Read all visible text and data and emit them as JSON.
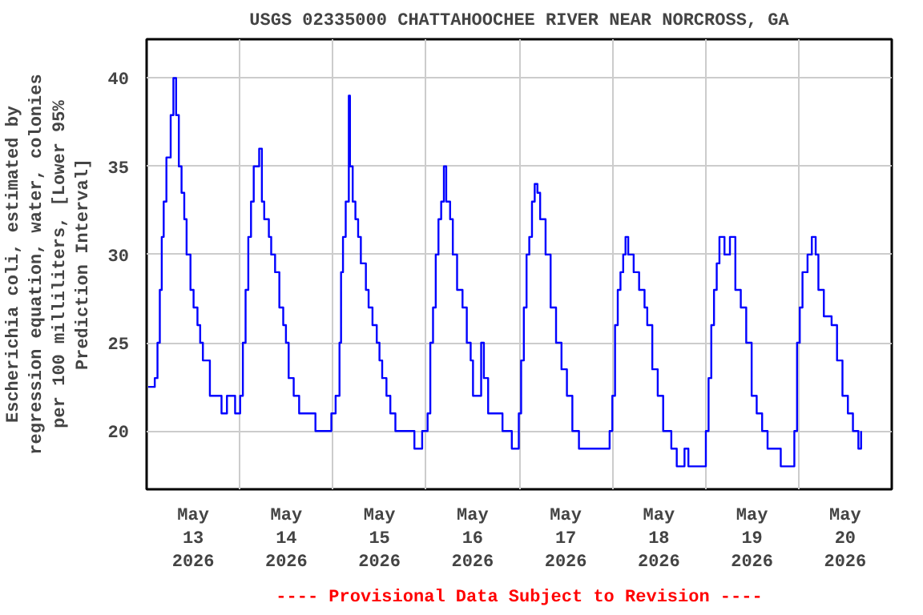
{
  "chart_data": {
    "type": "step",
    "title": "USGS 02335000 CHATTAHOOCHEE RIVER NEAR NORCROSS, GA",
    "ylabel": "Escherichia coli, estimated by\nregression equation, water, colonies\nper 100 milliliters, [Lower 95%\nPrediction Interval]",
    "annotations": [
      "---- Provisional Data Subject to Revision ----"
    ],
    "xlim": [
      "2026-05-13T00:00",
      "2026-05-21T00:00"
    ],
    "xticks": [
      {
        "value": "2026-05-13T12:00",
        "label": "May\n13\n2026"
      },
      {
        "value": "2026-05-14T12:00",
        "label": "May\n14\n2026"
      },
      {
        "value": "2026-05-15T12:00",
        "label": "May\n15\n2026"
      },
      {
        "value": "2026-05-16T12:00",
        "label": "May\n16\n2026"
      },
      {
        "value": "2026-05-17T12:00",
        "label": "May\n17\n2026"
      },
      {
        "value": "2026-05-18T12:00",
        "label": "May\n18\n2026"
      },
      {
        "value": "2026-05-19T12:00",
        "label": "May\n19\n2026"
      },
      {
        "value": "2026-05-20T12:00",
        "label": "May\n20\n2026"
      },
      {
        "value": "2026-05-14T00:00",
        "label": null
      },
      {
        "value": "2026-05-15T00:00",
        "label": null
      },
      {
        "value": "2026-05-16T00:00",
        "label": null
      },
      {
        "value": "2026-05-17T00:00",
        "label": null
      },
      {
        "value": "2026-05-18T00:00",
        "label": null
      },
      {
        "value": "2026-05-19T00:00",
        "label": null
      },
      {
        "value": "2026-05-20T00:00",
        "label": null
      }
    ],
    "ylim": [
      16.7,
      42.2
    ],
    "yticks": [
      20,
      25,
      30,
      35,
      40
    ],
    "grid": true,
    "series": [
      {
        "color": "#0000ff",
        "x": [
          "2026-05-13T00:24",
          "2026-05-13T02:06",
          "2026-05-13T02:48",
          "2026-05-13T03:24",
          "2026-05-13T03:54",
          "2026-05-13T04:24",
          "2026-05-13T05:06",
          "2026-05-13T06:12",
          "2026-05-13T06:54",
          "2026-05-13T07:36",
          "2026-05-13T08:18",
          "2026-05-13T09:00",
          "2026-05-13T09:42",
          "2026-05-13T10:18",
          "2026-05-13T11:18",
          "2026-05-13T12:06",
          "2026-05-13T13:06",
          "2026-05-13T13:48",
          "2026-05-13T14:30",
          "2026-05-13T16:18",
          "2026-05-13T18:36",
          "2026-05-13T19:18",
          "2026-05-13T20:42",
          "2026-05-13T22:48",
          "2026-05-14T00:06",
          "2026-05-14T00:48",
          "2026-05-14T01:30",
          "2026-05-14T02:12",
          "2026-05-14T02:54",
          "2026-05-14T03:36",
          "2026-05-14T05:00",
          "2026-05-14T05:42",
          "2026-05-14T06:18",
          "2026-05-14T07:30",
          "2026-05-14T08:06",
          "2026-05-14T09:06",
          "2026-05-14T10:12",
          "2026-05-14T11:12",
          "2026-05-14T11:54",
          "2026-05-14T12:36",
          "2026-05-14T13:54",
          "2026-05-14T15:18",
          "2026-05-14T18:48",
          "2026-05-14T19:30",
          "2026-05-14T22:12",
          "2026-05-14T23:36",
          "2026-05-15T00:42",
          "2026-05-15T01:42",
          "2026-05-15T02:06",
          "2026-05-15T02:36",
          "2026-05-15T03:18",
          "2026-05-15T04:06",
          "2026-05-15T04:24",
          "2026-05-15T05:06",
          "2026-05-15T05:48",
          "2026-05-15T06:30",
          "2026-05-15T07:12",
          "2026-05-15T08:30",
          "2026-05-15T09:12",
          "2026-05-15T10:12",
          "2026-05-15T11:18",
          "2026-05-15T12:00",
          "2026-05-15T12:42",
          "2026-05-15T13:48",
          "2026-05-15T14:48",
          "2026-05-15T16:06",
          "2026-05-15T20:18",
          "2026-05-15T21:00",
          "2026-05-15T22:24",
          "2026-05-15T23:00",
          "2026-05-16T00:24",
          "2026-05-16T01:06",
          "2026-05-16T01:48",
          "2026-05-16T02:30",
          "2026-05-16T03:12",
          "2026-05-16T03:54",
          "2026-05-16T04:36",
          "2026-05-16T05:12",
          "2026-05-16T06:12",
          "2026-05-16T06:54",
          "2026-05-16T08:00",
          "2026-05-16T09:24",
          "2026-05-16T10:30",
          "2026-05-16T11:30",
          "2026-05-16T12:06",
          "2026-05-16T14:12",
          "2026-05-16T14:54",
          "2026-05-16T16:00",
          "2026-05-16T19:00",
          "2026-05-16T19:42",
          "2026-05-16T22:06",
          "2026-05-16T23:54",
          "2026-05-17T00:30",
          "2026-05-17T01:12",
          "2026-05-17T01:54",
          "2026-05-17T02:36",
          "2026-05-17T03:18",
          "2026-05-17T04:00",
          "2026-05-17T04:42",
          "2026-05-17T05:24",
          "2026-05-17T06:48",
          "2026-05-17T08:06",
          "2026-05-17T09:30",
          "2026-05-17T10:54",
          "2026-05-17T12:18",
          "2026-05-17T13:42",
          "2026-05-17T15:24",
          "2026-05-17T22:36",
          "2026-05-17T23:18",
          "2026-05-18T00:00",
          "2026-05-18T00:42",
          "2026-05-18T01:24",
          "2026-05-18T02:06",
          "2026-05-18T02:48",
          "2026-05-18T03:24",
          "2026-05-18T04:06",
          "2026-05-18T05:30",
          "2026-05-18T06:54",
          "2026-05-18T08:18",
          "2026-05-18T09:00",
          "2026-05-18T10:18",
          "2026-05-18T11:42",
          "2026-05-18T13:06",
          "2026-05-18T15:12",
          "2026-05-18T16:36",
          "2026-05-18T18:36",
          "2026-05-18T19:36",
          "2026-05-18T22:42",
          "2026-05-19T00:06",
          "2026-05-19T00:48",
          "2026-05-19T01:30",
          "2026-05-19T02:12",
          "2026-05-19T02:54",
          "2026-05-19T03:36",
          "2026-05-19T04:54",
          "2026-05-19T06:18",
          "2026-05-19T07:42",
          "2026-05-19T09:06",
          "2026-05-19T10:30",
          "2026-05-19T11:54",
          "2026-05-19T13:12",
          "2026-05-19T14:36",
          "2026-05-19T16:00",
          "2026-05-19T18:42",
          "2026-05-19T19:24",
          "2026-05-19T22:12",
          "2026-05-19T22:54",
          "2026-05-19T23:36",
          "2026-05-20T00:18",
          "2026-05-20T01:00",
          "2026-05-20T02:18",
          "2026-05-20T03:24",
          "2026-05-20T04:24",
          "2026-05-20T05:06",
          "2026-05-20T06:30",
          "2026-05-20T08:30",
          "2026-05-20T09:54",
          "2026-05-20T11:18",
          "2026-05-20T12:42",
          "2026-05-20T14:00",
          "2026-05-20T15:24",
          "2026-05-20T16:06"
        ],
        "values": [
          22.5,
          23,
          25,
          28,
          31,
          33,
          35.5,
          37.9,
          40,
          37.9,
          35,
          33.5,
          32,
          30,
          28,
          27,
          26,
          25,
          24,
          22,
          22,
          21,
          22,
          21,
          22,
          25,
          28,
          31,
          33,
          35,
          36,
          33,
          32,
          31,
          30,
          29,
          27,
          26,
          25,
          23,
          22,
          21,
          21,
          20,
          20,
          21,
          22,
          25,
          29,
          31,
          33,
          39,
          35,
          33,
          32,
          31,
          29.5,
          28,
          27,
          26,
          25,
          24,
          23,
          22,
          21,
          20,
          20,
          19,
          19,
          20,
          21,
          25,
          27,
          30,
          32,
          33,
          35,
          33,
          32,
          30,
          28,
          27,
          25,
          24,
          22,
          25,
          23,
          21,
          21,
          20,
          19,
          21,
          24,
          27,
          30,
          31,
          33,
          34,
          33.5,
          32,
          30,
          27,
          25,
          23.5,
          22,
          20,
          19,
          19,
          20,
          22,
          26,
          28,
          29,
          30,
          31,
          30,
          29,
          28,
          27,
          26,
          23.5,
          22,
          20,
          19,
          18,
          19,
          18,
          18,
          20,
          23,
          26,
          28,
          29.5,
          31,
          30,
          31,
          28,
          27,
          25,
          22,
          21,
          20,
          19,
          19,
          18,
          18,
          20,
          25,
          27,
          29,
          30,
          31,
          30,
          28,
          26.5,
          26,
          24,
          22,
          21,
          20,
          19,
          20
        ]
      }
    ]
  }
}
